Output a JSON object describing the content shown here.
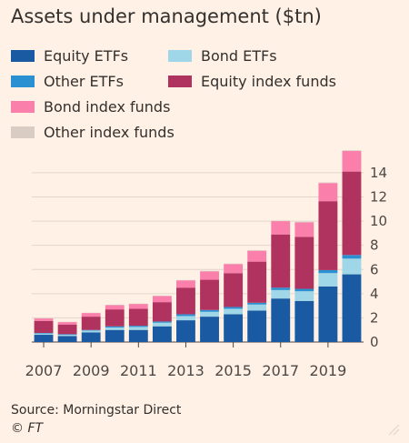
{
  "chart_data": {
    "type": "bar",
    "stacked": true,
    "title": "Assets under management ($tn)",
    "x": [
      2007,
      2008,
      2009,
      2010,
      2011,
      2012,
      2013,
      2014,
      2015,
      2016,
      2017,
      2018,
      2019,
      2020
    ],
    "x_tick_labels": [
      "2007",
      "2009",
      "2011",
      "2013",
      "2015",
      "2017",
      "2019"
    ],
    "y_tick_labels": [
      "0",
      "2",
      "4",
      "6",
      "8",
      "10",
      "12",
      "14"
    ],
    "ylim": [
      0,
      15.5
    ],
    "y_axis_side": "right",
    "grid": true,
    "legend_position": "top",
    "series": [
      {
        "name": "Equity ETFs",
        "color": "#1a5aa3",
        "values": [
          0.6,
          0.5,
          0.8,
          1.0,
          1.0,
          1.3,
          1.8,
          2.1,
          2.3,
          2.6,
          3.6,
          3.4,
          4.6,
          5.6
        ]
      },
      {
        "name": "Bond ETFs",
        "color": "#9fd6e8",
        "values": [
          0.1,
          0.1,
          0.15,
          0.2,
          0.25,
          0.3,
          0.35,
          0.4,
          0.45,
          0.5,
          0.7,
          0.8,
          1.1,
          1.3
        ]
      },
      {
        "name": "Other ETFs",
        "color": "#2b90d1",
        "values": [
          0.05,
          0.05,
          0.05,
          0.1,
          0.1,
          0.1,
          0.15,
          0.15,
          0.15,
          0.15,
          0.2,
          0.2,
          0.25,
          0.3
        ]
      },
      {
        "name": "Equity index funds",
        "color": "#b0325e",
        "values": [
          1.0,
          0.8,
          1.1,
          1.4,
          1.4,
          1.6,
          2.2,
          2.5,
          2.8,
          3.4,
          4.4,
          4.3,
          5.7,
          6.9
        ]
      },
      {
        "name": "Bond index funds",
        "color": "#fa7fab",
        "values": [
          0.2,
          0.2,
          0.3,
          0.35,
          0.4,
          0.5,
          0.6,
          0.7,
          0.75,
          0.9,
          1.1,
          1.2,
          1.5,
          1.7
        ]
      },
      {
        "name": "Other index funds",
        "color": "#d9ccc2",
        "values": [
          0.02,
          0.02,
          0.02,
          0.03,
          0.03,
          0.03,
          0.03,
          0.04,
          0.04,
          0.04,
          0.05,
          0.05,
          0.05,
          0.06
        ]
      }
    ]
  },
  "legend": {
    "items": [
      {
        "label": "Equity ETFs",
        "color": "#1a5aa3"
      },
      {
        "label": "Bond ETFs",
        "color": "#9fd6e8"
      },
      {
        "label": "Other ETFs",
        "color": "#2b90d1"
      },
      {
        "label": "Equity index funds",
        "color": "#b0325e"
      },
      {
        "label": "Bond index funds",
        "color": "#fa7fab"
      },
      {
        "label": "Other index funds",
        "color": "#d9ccc2"
      }
    ]
  },
  "footer": {
    "source": "Source: Morningstar Direct",
    "credit": "© FT"
  },
  "theme": {
    "background": "#fff1e5",
    "grid": "#e2d6cc",
    "text": "#33302e"
  }
}
